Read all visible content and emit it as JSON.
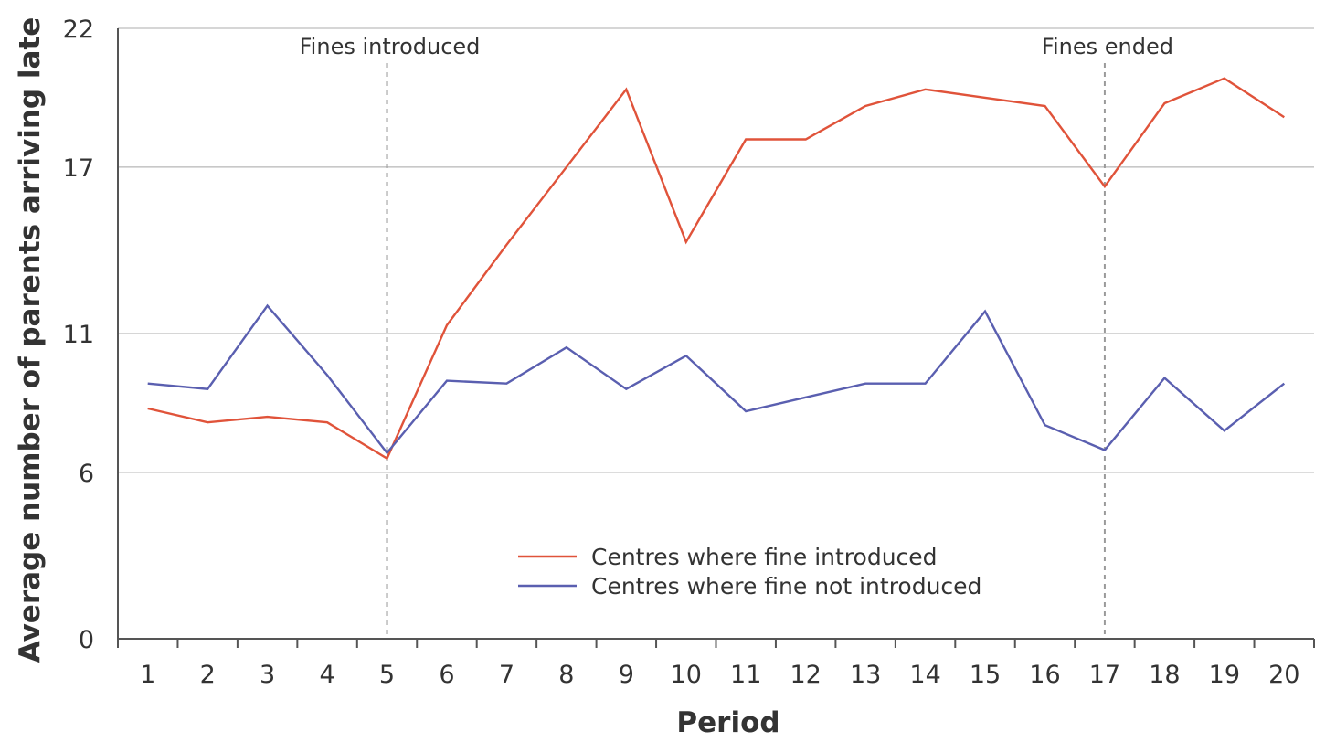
{
  "chart_data": {
    "type": "line",
    "xlabel": "Period",
    "ylabel": "Average number of parents arriving late",
    "x": [
      1,
      2,
      3,
      4,
      5,
      6,
      7,
      8,
      9,
      10,
      11,
      12,
      13,
      14,
      15,
      16,
      17,
      18,
      19,
      20
    ],
    "xlim": [
      0.5,
      20.5
    ],
    "ylim": [
      0,
      22
    ],
    "yticks": [
      0,
      6,
      11,
      17,
      22
    ],
    "grid": "horizontal",
    "legend_position": "bottom-center",
    "series": [
      {
        "name": "Centres where fine introduced",
        "color": "#e0533a",
        "values": [
          8.3,
          7.8,
          8.0,
          7.8,
          6.5,
          11.3,
          14.2,
          17.0,
          19.8,
          14.3,
          18.0,
          18.0,
          19.2,
          19.8,
          19.5,
          19.2,
          16.3,
          19.3,
          20.2,
          18.8
        ]
      },
      {
        "name": "Centres where fine not introduced",
        "color": "#5a5fb0",
        "values": [
          9.2,
          9.0,
          12.0,
          9.5,
          6.7,
          9.3,
          9.2,
          10.5,
          9.0,
          10.2,
          8.2,
          8.7,
          9.2,
          9.2,
          11.8,
          7.7,
          6.8,
          9.4,
          7.5,
          9.2
        ]
      }
    ],
    "annotations": [
      {
        "x": 5,
        "label": "Fines introduced"
      },
      {
        "x": 17,
        "label": "Fines ended"
      }
    ]
  },
  "colors": {
    "axis": "#555555",
    "grid": "#c8c8c8",
    "annotation_line": "#9a9a9a"
  }
}
